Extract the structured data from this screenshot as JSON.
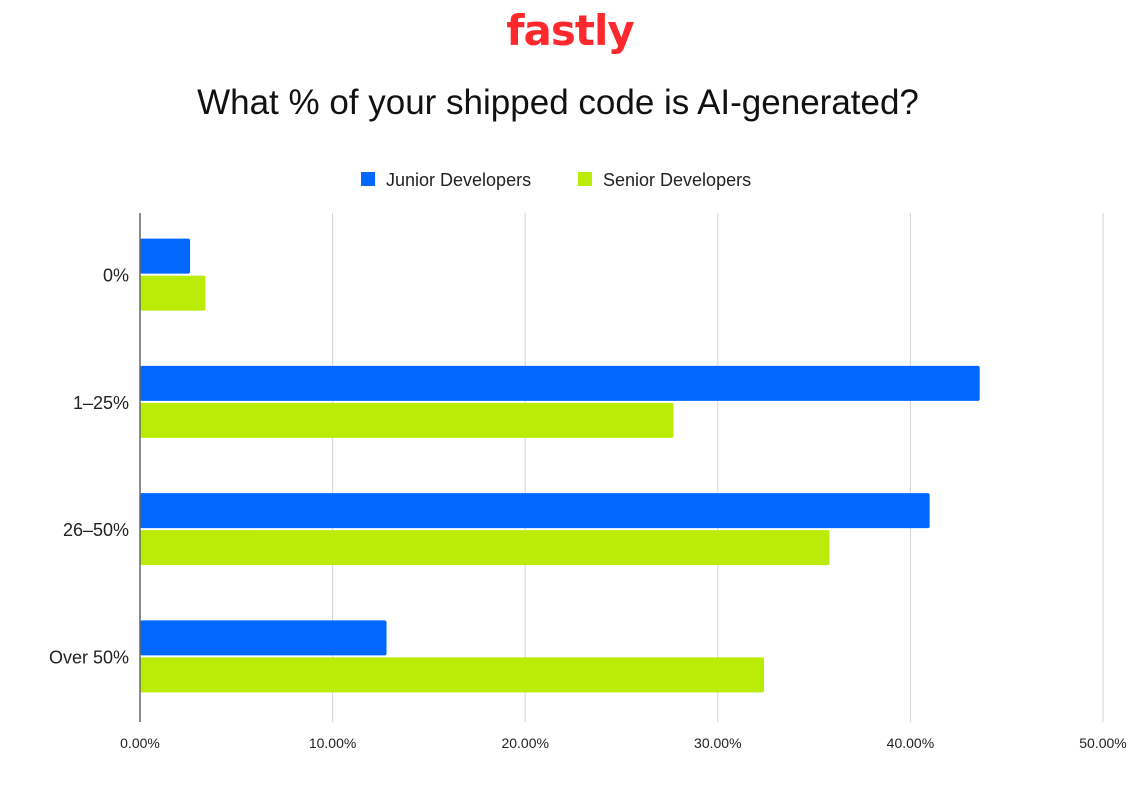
{
  "logo": "fastly",
  "chart_data": {
    "type": "bar",
    "orientation": "horizontal",
    "title": "What % of your shipped code is AI-generated?",
    "categories": [
      "0%",
      "1–25%",
      "26–50%",
      "Over 50%"
    ],
    "series": [
      {
        "name": "Junior Developers",
        "color": "#0068ff",
        "values": [
          2.6,
          43.6,
          41.0,
          12.8
        ]
      },
      {
        "name": "Senior Developers",
        "color": "#bbec08",
        "values": [
          3.4,
          27.7,
          35.8,
          32.4
        ]
      }
    ],
    "xlim": [
      0,
      50
    ],
    "xticks": [
      "0.00%",
      "10.00%",
      "20.00%",
      "30.00%",
      "40.00%",
      "50.00%"
    ],
    "grid": true,
    "legend": "top",
    "xlabel": "",
    "ylabel": ""
  }
}
